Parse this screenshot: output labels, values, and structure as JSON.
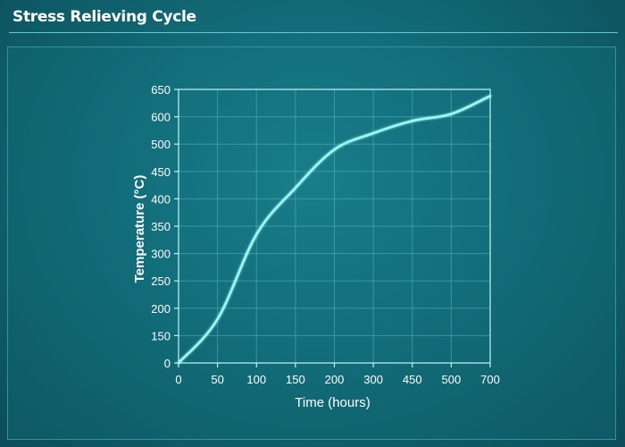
{
  "header": {
    "title": "Stress Relieving Cycle"
  },
  "colors": {
    "curve": "#9ff7f4",
    "grid": "#4fb9c2",
    "axis": "#bff7f7",
    "text": "#ffffff"
  },
  "chart_data": {
    "type": "line",
    "xlabel": "Time (hours)",
    "ylabel": "Temperature (°C)",
    "x_ticks": [
      "0",
      "50",
      "100",
      "150",
      "200",
      "300",
      "450",
      "500",
      "700"
    ],
    "y_ticks": [
      "0",
      "150",
      "200",
      "250",
      "300",
      "350",
      "400",
      "450",
      "500",
      "600",
      "650"
    ],
    "grid": true,
    "series": [
      {
        "style": "solid",
        "points": [
          [
            "0",
            0
          ],
          [
            "50",
            180
          ],
          [
            "100",
            335
          ],
          [
            "150",
            420
          ],
          [
            "200",
            490
          ],
          [
            "300",
            540
          ],
          [
            "450",
            585
          ],
          [
            "500",
            605
          ],
          [
            "700",
            638
          ]
        ]
      },
      {
        "style": "flat",
        "points": [
          [
            "0",
            600
          ],
          [
            "450",
            600
          ],
          [
            "700",
            600
          ]
        ]
      }
    ]
  }
}
